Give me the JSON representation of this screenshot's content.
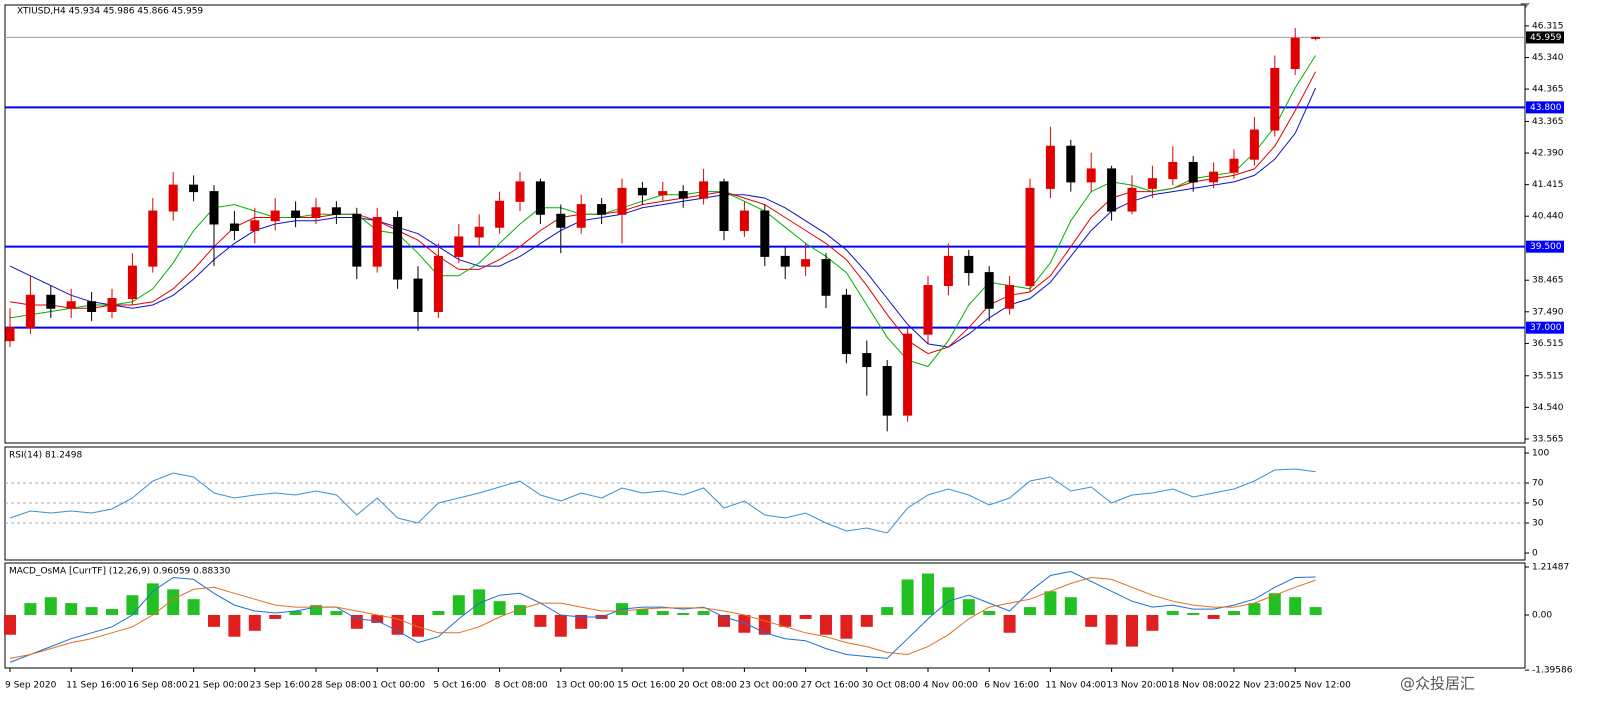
{
  "watermark": "@众投居汇",
  "chart_data": [
    {
      "type": "candlestick",
      "title": "XTIUSD,H4  45.934 45.986 45.866 45.959",
      "categories": [
        "9 Sep 2020",
        null,
        null,
        "11 Sep 16:00",
        null,
        null,
        "16 Sep 08:00",
        null,
        null,
        "21 Sep 00:00",
        null,
        null,
        "23 Sep 16:00",
        null,
        null,
        "28 Sep 08:00",
        null,
        null,
        "1 Oct 00:00",
        null,
        null,
        "5 Oct 16:00",
        null,
        null,
        "8 Oct 08:00",
        null,
        null,
        "13 Oct 00:00",
        null,
        null,
        "15 Oct 16:00",
        null,
        null,
        "20 Oct 08:00",
        null,
        null,
        "23 Oct 00:00",
        null,
        null,
        "27 Oct 16:00",
        null,
        null,
        "30 Oct 08:00",
        null,
        null,
        "4 Nov 00:00",
        null,
        null,
        "6 Nov 16:00",
        null,
        null,
        "11 Nov 04:00",
        null,
        null,
        "13 Nov 20:00",
        null,
        null,
        "18 Nov 08:00",
        null,
        null,
        "22 Nov 23:00",
        null,
        null,
        "25 Nov 12:00",
        null
      ],
      "open": [
        36.6,
        37.0,
        38.0,
        37.6,
        37.8,
        37.5,
        37.9,
        38.9,
        40.6,
        41.4,
        41.2,
        40.2,
        40.0,
        40.3,
        40.6,
        40.4,
        40.7,
        40.5,
        38.9,
        40.4,
        38.5,
        37.5,
        39.2,
        39.8,
        40.1,
        40.9,
        41.5,
        40.5,
        40.1,
        40.8,
        40.5,
        41.3,
        41.1,
        41.2,
        41.0,
        41.5,
        40.0,
        40.6,
        39.2,
        38.9,
        39.1,
        38.0,
        36.2,
        35.8,
        34.3,
        36.8,
        38.3,
        39.2,
        38.7,
        37.6,
        38.3,
        41.3,
        42.6,
        41.5,
        41.9,
        40.6,
        41.3,
        41.6,
        42.1,
        41.5,
        41.8,
        42.2,
        43.1,
        45.0,
        45.934
      ],
      "high": [
        37.6,
        38.6,
        38.3,
        38.2,
        38.1,
        38.2,
        39.3,
        41.0,
        41.8,
        41.7,
        41.4,
        40.6,
        40.7,
        41.0,
        40.9,
        41.0,
        40.9,
        40.7,
        40.7,
        40.6,
        38.9,
        39.6,
        40.2,
        40.5,
        41.2,
        41.8,
        41.6,
        40.8,
        41.1,
        41.0,
        41.6,
        41.5,
        41.5,
        41.4,
        41.9,
        41.6,
        40.9,
        40.8,
        39.5,
        39.6,
        39.3,
        38.2,
        36.6,
        36.0,
        37.0,
        38.6,
        39.6,
        39.4,
        38.9,
        38.6,
        41.6,
        43.2,
        42.8,
        42.4,
        42.0,
        41.7,
        42.0,
        42.6,
        42.3,
        42.1,
        42.5,
        43.5,
        45.4,
        46.25,
        45.986
      ],
      "low": [
        36.4,
        36.8,
        37.3,
        37.3,
        37.2,
        37.3,
        37.7,
        38.7,
        40.3,
        40.9,
        38.9,
        39.7,
        39.6,
        40.0,
        40.1,
        40.2,
        40.2,
        38.5,
        38.7,
        38.2,
        36.9,
        37.3,
        39.0,
        39.5,
        39.9,
        40.6,
        40.2,
        39.3,
        39.9,
        40.2,
        39.6,
        40.8,
        40.9,
        40.7,
        40.8,
        39.7,
        39.8,
        38.9,
        38.5,
        38.6,
        37.6,
        35.9,
        34.9,
        33.8,
        34.1,
        36.5,
        38.0,
        38.3,
        37.2,
        37.4,
        38.1,
        41.0,
        41.2,
        41.2,
        40.3,
        40.5,
        41.0,
        41.4,
        41.2,
        41.3,
        41.6,
        42.0,
        42.9,
        44.8,
        45.866
      ],
      "close": [
        37.0,
        38.0,
        37.6,
        37.8,
        37.5,
        37.9,
        38.9,
        40.6,
        41.4,
        41.2,
        40.2,
        40.0,
        40.3,
        40.6,
        40.4,
        40.7,
        40.5,
        38.9,
        40.4,
        38.5,
        37.5,
        39.2,
        39.8,
        40.1,
        40.9,
        41.5,
        40.5,
        40.1,
        40.8,
        40.5,
        41.3,
        41.1,
        41.2,
        41.0,
        41.5,
        40.0,
        40.6,
        39.2,
        38.9,
        39.1,
        38.0,
        36.2,
        35.8,
        34.3,
        36.8,
        38.3,
        39.2,
        38.7,
        37.6,
        38.3,
        41.3,
        42.6,
        41.5,
        41.9,
        40.6,
        41.3,
        41.6,
        42.1,
        41.5,
        41.8,
        42.2,
        43.1,
        45.0,
        45.93,
        45.959
      ],
      "up_color": "#e00000",
      "down_color": "#000000",
      "lines": [
        {
          "color": "#1010c8",
          "values": [
            38.9,
            38.6,
            38.3,
            38.0,
            37.8,
            37.7,
            37.6,
            37.7,
            38.0,
            38.5,
            39.1,
            39.6,
            40.0,
            40.2,
            40.3,
            40.3,
            40.4,
            40.4,
            40.3,
            40.1,
            39.9,
            39.5,
            39.1,
            38.9,
            38.9,
            39.2,
            39.6,
            40.0,
            40.3,
            40.4,
            40.5,
            40.7,
            40.8,
            40.9,
            41.0,
            41.1,
            41.1,
            41.0,
            40.7,
            40.3,
            39.9,
            39.4,
            38.7,
            37.9,
            37.1,
            36.5,
            36.4,
            36.8,
            37.3,
            37.7,
            37.9,
            38.4,
            39.2,
            40.0,
            40.6,
            40.9,
            41.1,
            41.2,
            41.3,
            41.4,
            41.5,
            41.7,
            42.2,
            43.0,
            44.4
          ]
        },
        {
          "color": "#e00000",
          "values": [
            37.8,
            37.7,
            37.7,
            37.6,
            37.6,
            37.7,
            37.7,
            37.8,
            38.2,
            38.8,
            39.5,
            40.1,
            40.4,
            40.4,
            40.4,
            40.4,
            40.5,
            40.5,
            40.3,
            40.0,
            39.7,
            39.2,
            38.8,
            38.8,
            39.1,
            39.5,
            40.0,
            40.4,
            40.5,
            40.5,
            40.6,
            40.8,
            40.9,
            41.0,
            41.1,
            41.2,
            41.0,
            40.8,
            40.4,
            40.0,
            39.6,
            39.1,
            38.3,
            37.4,
            36.6,
            36.2,
            36.4,
            37.0,
            37.7,
            38.0,
            38.1,
            38.6,
            39.5,
            40.4,
            41.0,
            41.2,
            41.2,
            41.3,
            41.5,
            41.6,
            41.7,
            41.9,
            42.6,
            43.7,
            44.9
          ]
        },
        {
          "color": "#00b000",
          "values": [
            37.3,
            37.4,
            37.5,
            37.6,
            37.7,
            37.7,
            37.8,
            38.2,
            39.0,
            40.0,
            40.7,
            40.8,
            40.6,
            40.4,
            40.4,
            40.5,
            40.5,
            40.5,
            40.0,
            39.9,
            39.3,
            38.6,
            38.6,
            39.0,
            39.6,
            40.2,
            40.7,
            40.7,
            40.5,
            40.5,
            40.7,
            40.9,
            41.1,
            41.1,
            41.2,
            41.2,
            40.9,
            40.6,
            40.1,
            39.6,
            39.2,
            38.7,
            37.7,
            36.7,
            36.0,
            35.8,
            36.6,
            37.7,
            38.4,
            38.3,
            38.2,
            39.0,
            40.3,
            41.2,
            41.5,
            41.4,
            41.2,
            41.3,
            41.6,
            41.7,
            41.8,
            42.4,
            43.2,
            44.4,
            45.4
          ]
        }
      ],
      "hline_color": "#0000ff",
      "hlines": [
        {
          "value": 43.8,
          "label": "43.800"
        },
        {
          "value": 39.5,
          "label": "39.500"
        },
        {
          "value": 37,
          "label": "37.000"
        }
      ],
      "last_price": 45.959,
      "ylim": [
        33.44,
        46.96
      ],
      "yticks": [
        46.315,
        {
          "value": 45.34,
          "label": "45.340"
        },
        44.365,
        43.365,
        {
          "value": 42.39,
          "label": "42.390"
        },
        41.415,
        {
          "value": 40.44,
          "label": "40.440"
        },
        38.465,
        {
          "value": 37.49,
          "label": "37.490"
        },
        36.515,
        35.515,
        {
          "value": 34.54,
          "label": "34.540"
        },
        33.565
      ]
    },
    {
      "type": "line",
      "title": "RSI(14) 81.2498",
      "color": "#3a8fd8",
      "values": [
        35,
        42,
        40,
        42,
        40,
        44,
        55,
        72,
        80,
        76,
        60,
        55,
        58,
        60,
        58,
        62,
        58,
        38,
        55,
        35,
        30,
        50,
        55,
        60,
        66,
        72,
        58,
        52,
        60,
        55,
        65,
        60,
        62,
        58,
        65,
        45,
        52,
        38,
        35,
        40,
        30,
        22,
        25,
        20,
        45,
        58,
        64,
        58,
        48,
        55,
        72,
        76,
        62,
        66,
        50,
        58,
        60,
        64,
        56,
        60,
        64,
        72,
        83,
        84,
        81.2498
      ],
      "levels": [
        30,
        50,
        70
      ],
      "ylim": [
        -7,
        106
      ],
      "yticks": [
        0,
        30,
        50,
        70,
        100
      ]
    },
    {
      "type": "macd",
      "title": "MACD_OsMA [CurrTF] (12,26,9) 0.96059 0.88330",
      "up_color": "#22c022",
      "down_color": "#e02020",
      "histogram": [
        -0.5,
        0.3,
        0.45,
        0.3,
        0.2,
        0.15,
        0.5,
        0.8,
        0.65,
        0.4,
        -0.3,
        -0.55,
        -0.4,
        -0.1,
        0.1,
        0.25,
        0.1,
        -0.35,
        -0.2,
        -0.5,
        -0.55,
        0.1,
        0.5,
        0.65,
        0.35,
        0.25,
        -0.3,
        -0.55,
        -0.35,
        -0.1,
        0.3,
        0.15,
        0.1,
        0.05,
        0.1,
        -0.3,
        -0.45,
        -0.5,
        -0.3,
        -0.1,
        -0.5,
        -0.6,
        -0.3,
        0.2,
        0.9,
        1.05,
        0.7,
        0.4,
        0.1,
        -0.45,
        0.2,
        0.6,
        0.45,
        -0.3,
        -0.75,
        -0.8,
        -0.4,
        0.1,
        0.05,
        -0.1,
        0.1,
        0.3,
        0.55,
        0.45,
        0.2
      ],
      "series": [
        {
          "color": "#1e6fd9",
          "values": [
            -1.2,
            -1.0,
            -0.8,
            -0.6,
            -0.45,
            -0.3,
            0.0,
            0.6,
            0.95,
            0.9,
            0.55,
            0.25,
            0.1,
            0.05,
            0.1,
            0.2,
            0.2,
            -0.1,
            -0.15,
            -0.4,
            -0.7,
            -0.55,
            -0.1,
            0.3,
            0.5,
            0.55,
            0.3,
            0.0,
            -0.05,
            -0.05,
            0.15,
            0.2,
            0.2,
            0.15,
            0.2,
            -0.05,
            -0.2,
            -0.45,
            -0.6,
            -0.65,
            -0.85,
            -1.0,
            -1.05,
            -1.1,
            -0.6,
            -0.1,
            0.35,
            0.5,
            0.3,
            0.1,
            0.6,
            1.0,
            1.1,
            0.85,
            0.6,
            0.35,
            0.2,
            0.25,
            0.15,
            0.15,
            0.25,
            0.4,
            0.7,
            0.95,
            0.96059
          ]
        },
        {
          "color": "#e07020",
          "values": [
            -1.1,
            -1.0,
            -0.85,
            -0.7,
            -0.6,
            -0.45,
            -0.3,
            0.0,
            0.4,
            0.65,
            0.7,
            0.55,
            0.4,
            0.25,
            0.2,
            0.2,
            0.2,
            0.1,
            0.0,
            -0.1,
            -0.3,
            -0.45,
            -0.45,
            -0.3,
            -0.05,
            0.15,
            0.3,
            0.3,
            0.2,
            0.1,
            0.1,
            0.15,
            0.18,
            0.18,
            0.18,
            0.1,
            0.0,
            -0.15,
            -0.3,
            -0.45,
            -0.55,
            -0.7,
            -0.8,
            -0.95,
            -1.0,
            -0.8,
            -0.5,
            -0.1,
            0.2,
            0.3,
            0.4,
            0.6,
            0.8,
            0.95,
            0.9,
            0.7,
            0.5,
            0.35,
            0.25,
            0.2,
            0.2,
            0.3,
            0.5,
            0.7,
            0.8833
          ]
        }
      ],
      "ylim": [
        -1.342,
        1.316
      ],
      "yticks": [
        1.21487,
        {
          "value": 0,
          "label": "0.00"
        },
        -1.39586
      ]
    }
  ]
}
